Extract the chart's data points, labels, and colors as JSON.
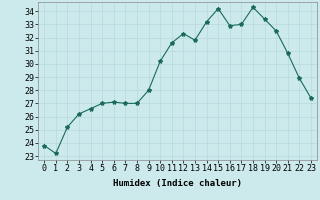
{
  "xlabel": "Humidex (Indice chaleur)",
  "x": [
    0,
    1,
    2,
    3,
    4,
    5,
    6,
    7,
    8,
    9,
    10,
    11,
    12,
    13,
    14,
    15,
    16,
    17,
    18,
    19,
    20,
    21,
    22,
    23
  ],
  "y": [
    23.8,
    23.2,
    25.2,
    26.2,
    26.6,
    27.0,
    27.1,
    27.0,
    27.0,
    28.0,
    30.2,
    31.6,
    32.3,
    31.8,
    33.2,
    34.2,
    32.9,
    33.0,
    34.3,
    33.4,
    32.5,
    30.8,
    28.9,
    27.4
  ],
  "line_color": "#1a6b5a",
  "marker": "*",
  "marker_size": 3,
  "background_color": "#cce9ec",
  "grid_color": "#b8d8db",
  "ylim": [
    22.7,
    34.7
  ],
  "yticks": [
    23,
    24,
    25,
    26,
    27,
    28,
    29,
    30,
    31,
    32,
    33,
    34
  ],
  "xticks": [
    0,
    1,
    2,
    3,
    4,
    5,
    6,
    7,
    8,
    9,
    10,
    11,
    12,
    13,
    14,
    15,
    16,
    17,
    18,
    19,
    20,
    21,
    22,
    23
  ],
  "xlabel_fontsize": 6.5,
  "tick_fontsize": 6
}
